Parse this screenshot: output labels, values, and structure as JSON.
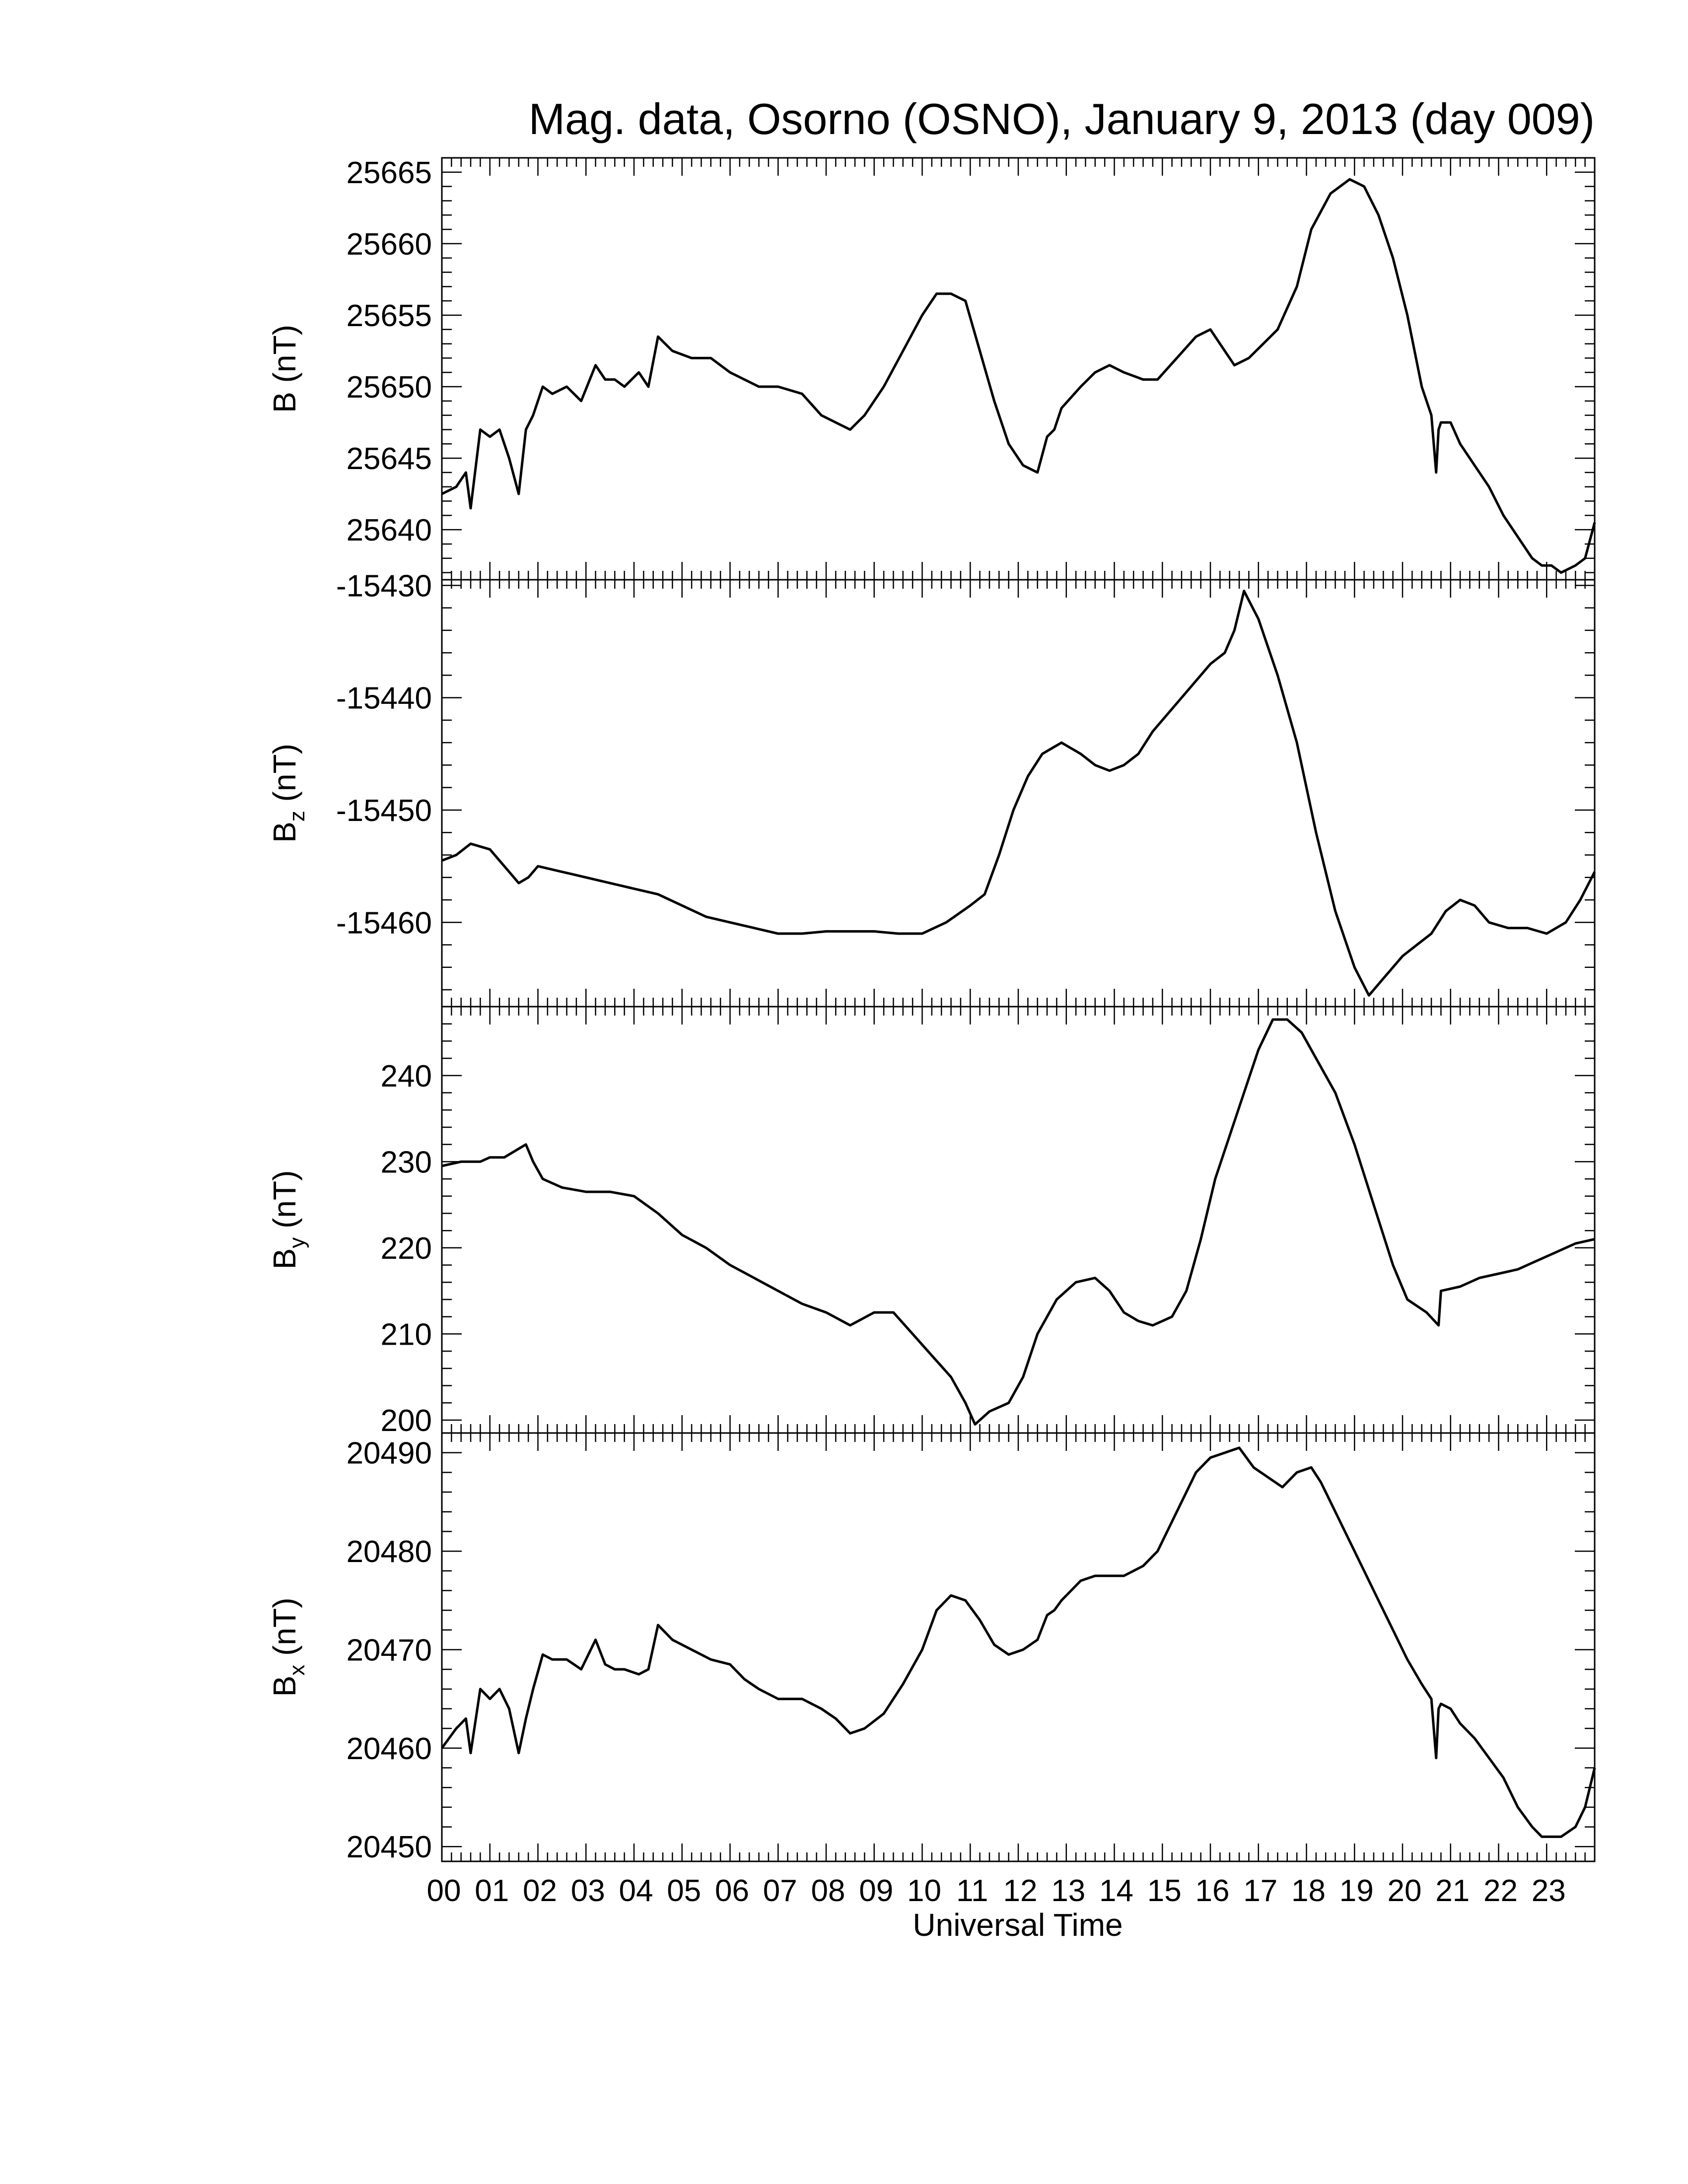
{
  "chart_data": {
    "type": "line",
    "title": "Mag. data, Osorno (OSNO), January 9, 2013 (day 009)",
    "xlabel": "Universal Time",
    "xlim": [
      0,
      24
    ],
    "x_tick_labels": [
      "00",
      "01",
      "02",
      "03",
      "04",
      "05",
      "06",
      "07",
      "08",
      "09",
      "10",
      "11",
      "12",
      "13",
      "14",
      "15",
      "16",
      "17",
      "18",
      "19",
      "20",
      "21",
      "22",
      "23"
    ],
    "grid": false,
    "panels": [
      {
        "id": "B",
        "ylabel": {
          "base": "B",
          "sub": "",
          "unit": " (nT)"
        },
        "ylim": [
          25636.5,
          25666
        ],
        "yticks": [
          25640,
          25645,
          25650,
          25655,
          25660,
          25665
        ],
        "series": [
          {
            "x": [
              0,
              0.3,
              0.5,
              0.6,
              0.8,
              1.0,
              1.2,
              1.4,
              1.6,
              1.75,
              1.9,
              2.1,
              2.3,
              2.6,
              2.9,
              3.2,
              3.4,
              3.6,
              3.8,
              4.1,
              4.3,
              4.5,
              4.8,
              5.2,
              5.6,
              6.0,
              6.3,
              6.6,
              7.0,
              7.5,
              7.9,
              8.2,
              8.5,
              8.8,
              9.2,
              9.6,
              10.0,
              10.3,
              10.6,
              10.9,
              11.2,
              11.5,
              11.8,
              12.1,
              12.4,
              12.6,
              12.75,
              12.9,
              13.3,
              13.6,
              13.9,
              14.2,
              14.6,
              14.9,
              15.3,
              15.7,
              16.0,
              16.2,
              16.5,
              16.8,
              17.1,
              17.4,
              17.8,
              18.1,
              18.5,
              18.9,
              19.2,
              19.5,
              19.8,
              20.1,
              20.4,
              20.6,
              20.7,
              20.75,
              20.8,
              21.0,
              21.2,
              21.5,
              21.8,
              22.1,
              22.4,
              22.7,
              22.9,
              23.1,
              23.3,
              23.6,
              23.8,
              24.0
            ],
            "y": [
              25642.5,
              25643,
              25644,
              25641.5,
              25647,
              25646.5,
              25647,
              25645,
              25642.5,
              25647,
              25648,
              25650,
              25649.5,
              25650,
              25649,
              25651.5,
              25650.5,
              25650.5,
              25650,
              25651,
              25650,
              25653.5,
              25652.5,
              25652,
              25652,
              25651,
              25650.5,
              25650,
              25650,
              25649.5,
              25648,
              25647.5,
              25647,
              25648,
              25650,
              25652.5,
              25655,
              25656.5,
              25656.5,
              25656,
              25652.5,
              25649,
              25646,
              25644.5,
              25644,
              25646.5,
              25647,
              25648.5,
              25650,
              25651,
              25651.5,
              25651,
              25650.5,
              25650.5,
              25652,
              25653.5,
              25654,
              25653,
              25651.5,
              25652,
              25653,
              25654,
              25657,
              25661,
              25663.5,
              25664.5,
              25664,
              25662,
              25659,
              25655,
              25650,
              25648,
              25644,
              25647,
              25647.5,
              25647.5,
              25646,
              25644.5,
              25643,
              25641,
              25639.5,
              25638,
              25637.5,
              25637.5,
              25637,
              25637.5,
              25638,
              25640.5
            ]
          }
        ]
      },
      {
        "id": "Bz",
        "ylabel": {
          "base": "B",
          "sub": "z",
          "unit": " (nT)"
        },
        "ylim": [
          -15467.5,
          -15429.5
        ],
        "yticks": [
          -15460,
          -15450,
          -15440,
          -15430
        ],
        "series": [
          {
            "x": [
              0,
              0.3,
              0.6,
              1.0,
              1.4,
              1.6,
              1.8,
              2.0,
              2.5,
              3.0,
              3.5,
              4.0,
              4.5,
              5.0,
              5.5,
              6.0,
              6.5,
              7.0,
              7.5,
              8.0,
              8.5,
              9.0,
              9.5,
              10.0,
              10.5,
              11.0,
              11.3,
              11.6,
              11.9,
              12.2,
              12.5,
              12.9,
              13.3,
              13.6,
              13.9,
              14.2,
              14.5,
              14.8,
              15.2,
              15.6,
              16.0,
              16.3,
              16.5,
              16.7,
              17.0,
              17.4,
              17.8,
              18.2,
              18.6,
              19.0,
              19.3,
              19.6,
              20.0,
              20.3,
              20.6,
              20.9,
              21.2,
              21.5,
              21.8,
              22.2,
              22.6,
              23.0,
              23.4,
              23.7,
              24.0
            ],
            "y": [
              -15454.5,
              -15454,
              -15453,
              -15453.5,
              -15455.5,
              -15456.5,
              -15456,
              -15455,
              -15455.5,
              -15456,
              -15456.5,
              -15457,
              -15457.5,
              -15458.5,
              -15459.5,
              -15460,
              -15460.5,
              -15461,
              -15461,
              -15460.8,
              -15460.8,
              -15460.8,
              -15461,
              -15461,
              -15460,
              -15458.5,
              -15457.5,
              -15454,
              -15450,
              -15447,
              -15445,
              -15444,
              -15445,
              -15446,
              -15446.5,
              -15446,
              -15445,
              -15443,
              -15441,
              -15439,
              -15437,
              -15436,
              -15434,
              -15430.5,
              -15433,
              -15438,
              -15444,
              -15452,
              -15459,
              -15464,
              -15466.5,
              -15465,
              -15463,
              -15462,
              -15461,
              -15459,
              -15458,
              -15458.5,
              -15460,
              -15460.5,
              -15460.5,
              -15461,
              -15460,
              -15458,
              -15455.5
            ]
          }
        ]
      },
      {
        "id": "By",
        "ylabel": {
          "base": "B",
          "sub": "y",
          "unit": " (nT)"
        },
        "ylim": [
          198.5,
          248
        ],
        "yticks": [
          200,
          210,
          220,
          230,
          240
        ],
        "series": [
          {
            "x": [
              0,
              0.4,
              0.8,
              1.0,
              1.3,
              1.6,
              1.75,
              1.9,
              2.1,
              2.5,
              3.0,
              3.5,
              4.0,
              4.5,
              5.0,
              5.5,
              6.0,
              6.5,
              7.0,
              7.5,
              8.0,
              8.5,
              9.0,
              9.4,
              9.8,
              10.2,
              10.6,
              10.9,
              11.1,
              11.4,
              11.8,
              12.1,
              12.4,
              12.8,
              13.2,
              13.6,
              13.9,
              14.2,
              14.5,
              14.8,
              15.2,
              15.5,
              15.8,
              16.1,
              16.4,
              16.7,
              17.0,
              17.3,
              17.6,
              17.9,
              18.2,
              18.6,
              19.0,
              19.4,
              19.8,
              20.1,
              20.5,
              20.75,
              20.8,
              21.2,
              21.6,
              22.0,
              22.4,
              22.8,
              23.2,
              23.6,
              24.0
            ],
            "y": [
              229.5,
              230,
              230,
              230.5,
              230.5,
              231.5,
              232,
              230,
              228,
              227,
              226.5,
              226.5,
              226,
              224,
              221.5,
              220,
              218,
              216.5,
              215,
              213.5,
              212.5,
              211,
              212.5,
              212.5,
              210,
              207.5,
              205,
              202,
              199.5,
              201,
              202,
              205,
              210,
              214,
              216,
              216.5,
              215,
              212.5,
              211.5,
              211,
              212,
              215,
              221,
              228,
              233,
              238,
              243,
              246.5,
              246.5,
              245,
              242,
              238,
              232,
              225,
              218,
              214,
              212.5,
              211,
              215,
              215.5,
              216.5,
              217,
              217.5,
              218.5,
              219.5,
              220.5,
              221
            ]
          }
        ]
      },
      {
        "id": "Bx",
        "ylabel": {
          "base": "B",
          "sub": "x",
          "unit": " (nT)"
        },
        "ylim": [
          20448.5,
          20492
        ],
        "yticks": [
          20450,
          20460,
          20470,
          20480,
          20490
        ],
        "series": [
          {
            "x": [
              0,
              0.3,
              0.5,
              0.6,
              0.8,
              1.0,
              1.2,
              1.4,
              1.6,
              1.75,
              1.9,
              2.1,
              2.3,
              2.6,
              2.9,
              3.2,
              3.4,
              3.6,
              3.8,
              4.1,
              4.3,
              4.5,
              4.8,
              5.2,
              5.6,
              6.0,
              6.3,
              6.6,
              7.0,
              7.5,
              7.9,
              8.2,
              8.5,
              8.8,
              9.2,
              9.6,
              10.0,
              10.3,
              10.6,
              10.9,
              11.2,
              11.5,
              11.8,
              12.1,
              12.4,
              12.6,
              12.75,
              12.9,
              13.3,
              13.6,
              13.9,
              14.2,
              14.6,
              14.9,
              15.3,
              15.7,
              16.0,
              16.3,
              16.6,
              16.9,
              17.2,
              17.5,
              17.8,
              18.1,
              18.3,
              18.6,
              18.9,
              19.2,
              19.5,
              19.8,
              20.1,
              20.4,
              20.6,
              20.7,
              20.75,
              20.8,
              21.0,
              21.2,
              21.5,
              21.8,
              22.1,
              22.4,
              22.7,
              22.9,
              23.1,
              23.3,
              23.6,
              23.8,
              24.0
            ],
            "y": [
              20460,
              20462,
              20463,
              20459.5,
              20466,
              20465,
              20466,
              20464,
              20459.5,
              20463,
              20466,
              20469.5,
              20469,
              20469,
              20468,
              20471,
              20468.5,
              20468,
              20468,
              20467.5,
              20468,
              20472.5,
              20471,
              20470,
              20469,
              20468.5,
              20467,
              20466,
              20465,
              20465,
              20464,
              20463,
              20461.5,
              20462,
              20463.5,
              20466.5,
              20470,
              20474,
              20475.5,
              20475,
              20473,
              20470.5,
              20469.5,
              20470,
              20471,
              20473.5,
              20474,
              20475,
              20477,
              20477.5,
              20477.5,
              20477.5,
              20478.5,
              20480,
              20484,
              20488,
              20489.5,
              20490,
              20490.5,
              20488.5,
              20487.5,
              20486.5,
              20488,
              20488.5,
              20487,
              20484,
              20481,
              20478,
              20475,
              20472,
              20469,
              20466.5,
              20465,
              20459,
              20464,
              20464.5,
              20464,
              20462.5,
              20461,
              20459,
              20457,
              20454,
              20452,
              20451,
              20451,
              20451,
              20452,
              20454,
              20458
            ]
          }
        ]
      }
    ]
  }
}
